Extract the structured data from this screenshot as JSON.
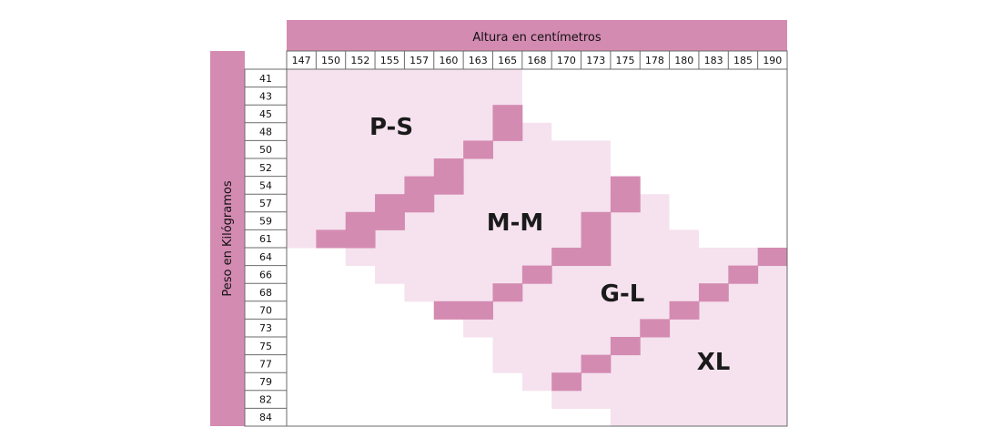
{
  "colors": {
    "header": "#D48BB2",
    "light": "#F5E2EE",
    "border": "#6b6b6b",
    "white": "#ffffff"
  },
  "chart_data": {
    "type": "table",
    "title": "",
    "xlabel": "Altura en centímetros",
    "ylabel": "Peso en Kilógramos",
    "x_ticks": [
      "147",
      "150",
      "152",
      "155",
      "157",
      "160",
      "163",
      "165",
      "168",
      "170",
      "173",
      "175",
      "178",
      "180",
      "183",
      "185",
      "190"
    ],
    "y_ticks": [
      "41",
      "43",
      "45",
      "48",
      "50",
      "52",
      "54",
      "57",
      "59",
      "61",
      "64",
      "66",
      "68",
      "70",
      "73",
      "75",
      "77",
      "79",
      "82",
      "84"
    ],
    "size_labels": [
      "P-S",
      "M-M",
      "G-L",
      "XL"
    ],
    "zones": [
      {
        "size": "P-S",
        "cells": [
          [
            0,
            7
          ],
          [
            0,
            7
          ],
          [
            0,
            7
          ],
          [
            0,
            6
          ],
          [
            0,
            5
          ],
          [
            0,
            4
          ],
          [
            0,
            3
          ],
          [
            0,
            2
          ],
          [
            0,
            1
          ],
          [
            0,
            0
          ],
          [],
          [],
          [],
          [],
          [],
          [],
          [],
          [],
          [],
          []
        ]
      },
      {
        "size": "M-M",
        "cells": [
          [],
          [],
          [
            7,
            7
          ],
          [
            7,
            8
          ],
          [
            6,
            10
          ],
          [
            5,
            10
          ],
          [
            4,
            10
          ],
          [
            3,
            11
          ],
          [
            2,
            10
          ],
          [
            1,
            9
          ],
          [
            2,
            8
          ],
          [
            3,
            7
          ],
          [
            4,
            6
          ],
          [
            5,
            6
          ],
          [
            6,
            7
          ],
          [],
          [],
          [],
          [],
          []
        ]
      },
      {
        "size": "G-L",
        "cells": [
          [],
          [],
          [],
          [],
          [],
          [],
          [
            11,
            11
          ],
          [
            11,
            12
          ],
          [
            11,
            12
          ],
          [
            10,
            13
          ],
          [
            9,
            15
          ],
          [
            8,
            14
          ],
          [
            7,
            13
          ],
          [
            7,
            12
          ],
          [
            7,
            11
          ],
          [
            7,
            10
          ],
          [
            7,
            9
          ],
          [
            8,
            8
          ],
          [
            9,
            10
          ],
          []
        ]
      },
      {
        "size": "XL",
        "cells": [
          [],
          [],
          [],
          [],
          [],
          [],
          [],
          [],
          [],
          [],
          [
            16,
            16
          ],
          [
            15,
            16
          ],
          [
            14,
            16
          ],
          [
            13,
            16
          ],
          [
            12,
            16
          ],
          [
            11,
            16
          ],
          [
            10,
            16
          ],
          [
            10,
            16
          ],
          [
            10,
            16
          ],
          [
            11,
            16
          ]
        ]
      }
    ],
    "boundary_cells": [
      [
        2,
        7
      ],
      [
        3,
        7
      ],
      [
        4,
        6
      ],
      [
        5,
        5
      ],
      [
        6,
        4
      ],
      [
        6,
        5
      ],
      [
        7,
        3
      ],
      [
        7,
        4
      ],
      [
        8,
        2
      ],
      [
        8,
        3
      ],
      [
        9,
        1
      ],
      [
        9,
        2
      ],
      [
        6,
        11
      ],
      [
        7,
        11
      ],
      [
        8,
        10
      ],
      [
        9,
        10
      ],
      [
        10,
        9
      ],
      [
        10,
        10
      ],
      [
        11,
        8
      ],
      [
        12,
        7
      ],
      [
        13,
        5
      ],
      [
        13,
        6
      ],
      [
        10,
        16
      ],
      [
        11,
        15
      ],
      [
        12,
        14
      ],
      [
        13,
        13
      ],
      [
        14,
        12
      ],
      [
        15,
        11
      ],
      [
        16,
        10
      ],
      [
        17,
        9
      ]
    ]
  }
}
